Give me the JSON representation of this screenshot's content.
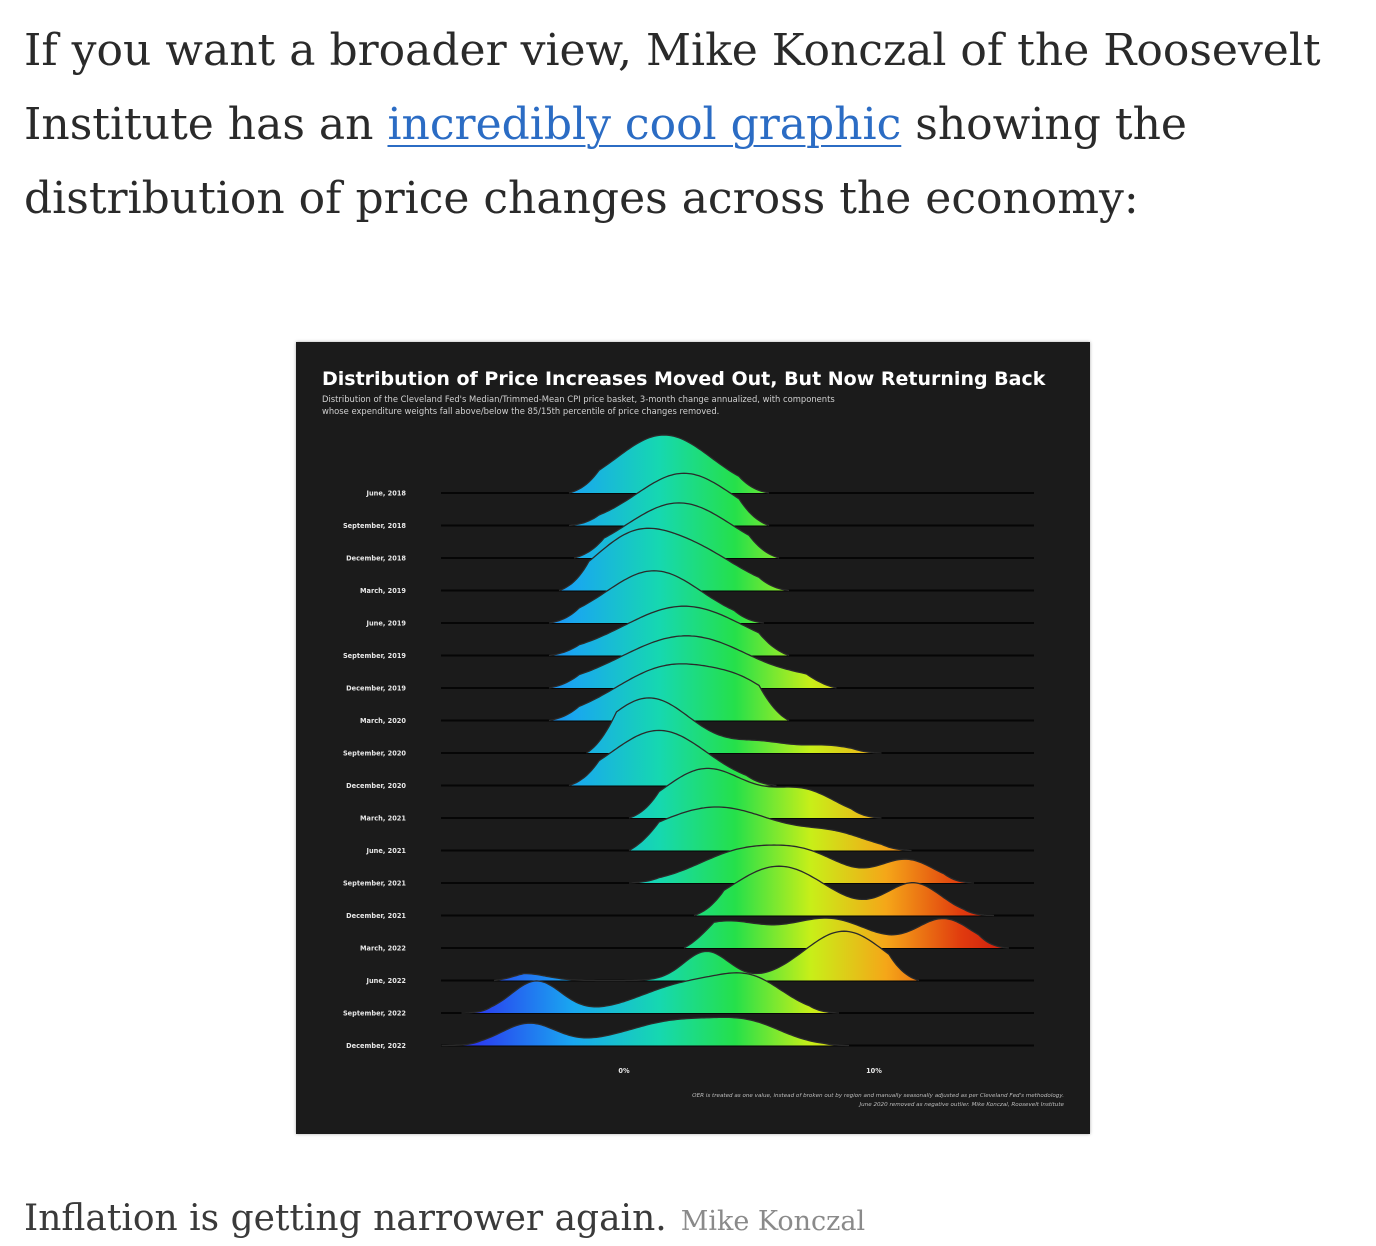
{
  "article": {
    "before_link": "If you want a broader view, Mike Konczal of the Roosevelt Institute has an ",
    "link_text": "incredibly cool graphic",
    "after_link": " showing the distribution of price changes across the economy:"
  },
  "caption": {
    "text": "Inflation is getting narrower again.",
    "credit": "Mike Konczal"
  },
  "colors": {
    "link": "#2b6cc4",
    "chart_background": "#1b1b1b",
    "gradient": [
      "#2b3cf0",
      "#19a7f0",
      "#16d8b0",
      "#25e04a",
      "#c8ef18",
      "#f5a618",
      "#e03a0e",
      "#c8160d"
    ]
  },
  "chart_data": {
    "type": "ridgeline",
    "title": "Distribution of Price Increases Moved Out, But Now Returning Back",
    "subtitle_line1": "Distribution of the Cleveland Fed's Median/Trimmed-Mean CPI price basket, 3-month change annualized, with components",
    "subtitle_line2": "whose expenditure weights fall above/below the 85/15th percentile of price changes removed.",
    "x_ticks": [
      {
        "value": 0,
        "label": "0%"
      },
      {
        "value": 10,
        "label": "10%"
      }
    ],
    "xlim": [
      -8,
      16
    ],
    "footnote_line1": "OER is treated as one value, instead of broken out by region and manually seasonally adjusted as per Cleveland Fed's methodology.",
    "footnote_line2": "June 2020 removed as negative outlier. Mike Konczal, Roosevelt Institute",
    "series": [
      {
        "name": "June, 2018",
        "modes": [
          [
            1.6,
            1.9,
            1.0
          ]
        ],
        "range": [
          -2.2,
          5.8
        ]
      },
      {
        "name": "September, 2018",
        "modes": [
          [
            2.4,
            1.9,
            0.9
          ]
        ],
        "range": [
          -2.2,
          5.8
        ]
      },
      {
        "name": "December, 2018",
        "modes": [
          [
            2.2,
            2.1,
            0.95
          ]
        ],
        "range": [
          -2.0,
          6.2
        ]
      },
      {
        "name": "March, 2019",
        "modes": [
          [
            0.3,
            1.6,
            0.85
          ],
          [
            3.0,
            1.7,
            0.6
          ]
        ],
        "range": [
          -2.6,
          6.6
        ]
      },
      {
        "name": "June, 2019",
        "modes": [
          [
            1.2,
            1.9,
            0.9
          ]
        ],
        "range": [
          -3.0,
          5.6
        ]
      },
      {
        "name": "September, 2019",
        "modes": [
          [
            2.4,
            2.4,
            0.85
          ]
        ],
        "range": [
          -3.0,
          6.6
        ]
      },
      {
        "name": "December, 2019",
        "modes": [
          [
            2.5,
            2.6,
            0.9
          ],
          [
            7.5,
            1.0,
            0.08
          ]
        ],
        "range": [
          -3.0,
          8.5
        ]
      },
      {
        "name": "March, 2020",
        "modes": [
          [
            2.0,
            2.3,
            0.95
          ],
          [
            5.0,
            1.3,
            0.3
          ]
        ],
        "range": [
          -3.0,
          6.6
        ]
      },
      {
        "name": "September, 2020",
        "modes": [
          [
            1.0,
            1.7,
            0.95
          ],
          [
            5.5,
            1.2,
            0.18
          ],
          [
            8.2,
            1.0,
            0.12
          ]
        ],
        "range": [
          -1.5,
          10.3
        ]
      },
      {
        "name": "December, 2020",
        "modes": [
          [
            1.4,
            1.9,
            0.95
          ]
        ],
        "range": [
          -2.2,
          6.1
        ]
      },
      {
        "name": "March, 2021",
        "modes": [
          [
            3.3,
            1.7,
            0.85
          ],
          [
            7.2,
            1.3,
            0.45
          ]
        ],
        "range": [
          0.2,
          10.3
        ]
      },
      {
        "name": "June, 2021",
        "modes": [
          [
            3.7,
            2.5,
            0.75
          ],
          [
            8.5,
            1.3,
            0.22
          ]
        ],
        "range": [
          0.2,
          11.5
        ]
      },
      {
        "name": "September, 2021",
        "modes": [
          [
            4.8,
            1.8,
            0.55
          ],
          [
            7.5,
            1.4,
            0.38
          ],
          [
            11.3,
            1.1,
            0.4
          ]
        ],
        "range": [
          0.2,
          14.0
        ]
      },
      {
        "name": "December, 2021",
        "modes": [
          [
            6.2,
            1.9,
            0.85
          ],
          [
            11.6,
            1.1,
            0.55
          ]
        ],
        "range": [
          2.8,
          14.8
        ]
      },
      {
        "name": "March, 2022",
        "modes": [
          [
            4.0,
            1.6,
            0.45
          ],
          [
            8.2,
            1.6,
            0.5
          ],
          [
            12.8,
            1.1,
            0.5
          ]
        ],
        "range": [
          2.4,
          15.4
        ]
      },
      {
        "name": "June, 2022",
        "modes": [
          [
            3.3,
            0.9,
            0.5
          ],
          [
            8.8,
            1.6,
            0.85
          ],
          [
            -4.0,
            0.9,
            0.12
          ]
        ],
        "range": [
          -5.2,
          11.8
        ]
      },
      {
        "name": "September, 2022",
        "modes": [
          [
            -3.5,
            1.0,
            0.55
          ],
          [
            2.6,
            1.9,
            0.5
          ],
          [
            5.2,
            1.3,
            0.45
          ]
        ],
        "range": [
          -6.5,
          8.6
        ]
      },
      {
        "name": "December, 2022",
        "modes": [],
        "range": [
          -7.5,
          16
        ]
      }
    ]
  }
}
